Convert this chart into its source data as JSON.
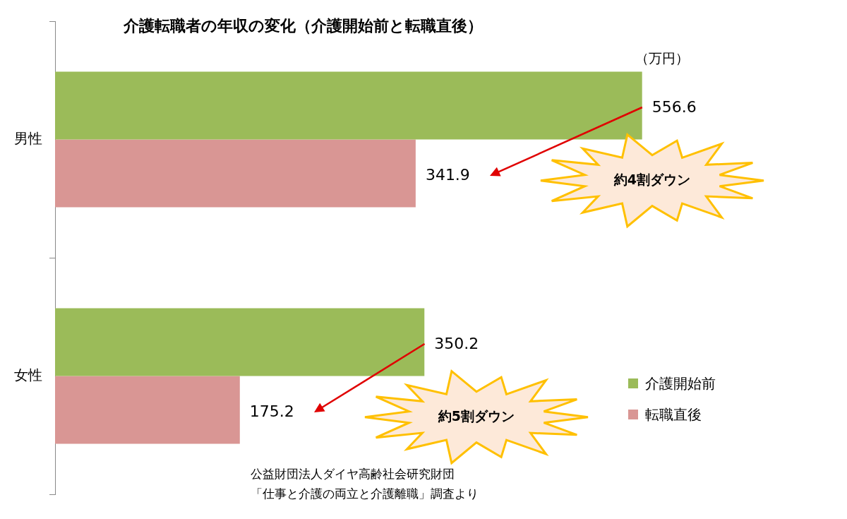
{
  "chart_data": {
    "type": "bar",
    "orientation": "horizontal",
    "title": "介護転職者の年収の変化（介護開始前と転職直後）",
    "categories": [
      "男性",
      "女性"
    ],
    "series": [
      {
        "name": "介護開始前",
        "color": "#9bbb59",
        "values": [
          556.6,
          350.2
        ]
      },
      {
        "name": "転職直後",
        "color": "#d99694",
        "values": [
          341.9,
          175.2
        ]
      }
    ],
    "data_labels": true,
    "legend": "right",
    "annotations": [
      "（万円）",
      "約4割ダウン",
      "約5割ダウン",
      "公益財団法人ダイヤ高齢社会研究財団",
      "「仕事と介護の両立と介護離職」調査より"
    ]
  }
}
